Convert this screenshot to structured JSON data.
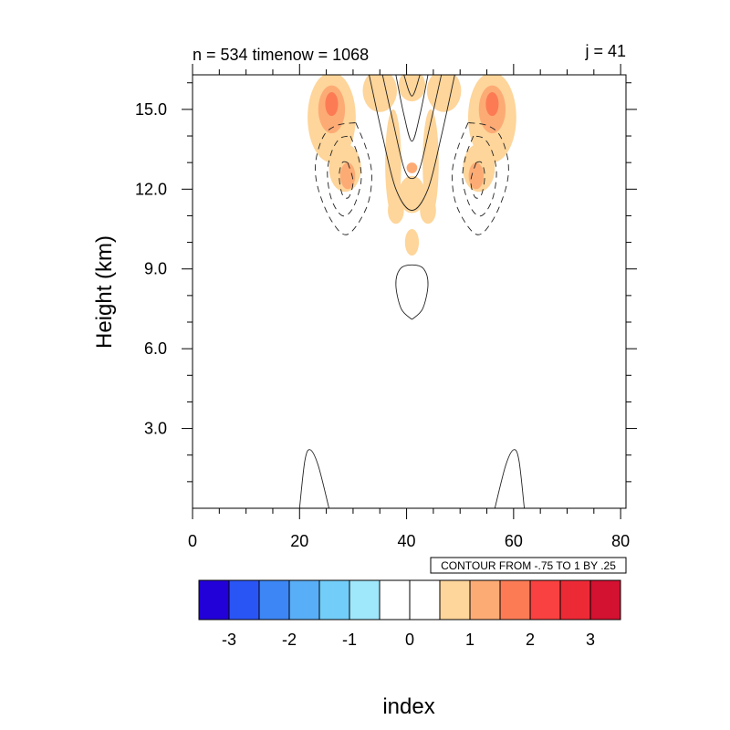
{
  "chart_data": {
    "type": "contour",
    "title_left": "n = 534 timenow = 1068",
    "title_right": "j = 41",
    "xlabel": "index",
    "ylabel": "Height (km)",
    "xlim": [
      0,
      81
    ],
    "ylim": [
      0,
      16.3
    ],
    "xticks": [
      {
        "value": 0,
        "label": "0"
      },
      {
        "value": 20,
        "label": "20"
      },
      {
        "value": 40,
        "label": "40"
      },
      {
        "value": 60,
        "label": "60"
      },
      {
        "value": 80,
        "label": "80"
      }
    ],
    "yticks": [
      {
        "value": 3,
        "label": "3.0"
      },
      {
        "value": 6,
        "label": "6.0"
      },
      {
        "value": 9,
        "label": "9.0"
      },
      {
        "value": 12,
        "label": "12.0"
      },
      {
        "value": 15,
        "label": "15.0"
      }
    ],
    "contour_info": "CONTOUR FROM -.75 TO 1 BY .25",
    "colorbar": {
      "colors": [
        "#2200d8",
        "#2a55f5",
        "#3c86f5",
        "#58aef7",
        "#72cdf8",
        "#9fe7fb",
        "#ffffff",
        "#ffffff",
        "#fed59a",
        "#fdab75",
        "#fc7b55",
        "#f84140",
        "#ec2a36",
        "#d31131"
      ],
      "labels": [
        "-3",
        "-2",
        "-1",
        "0",
        "1",
        "2",
        "3"
      ]
    },
    "filled_regions": [
      {
        "level": 1,
        "x": 26,
        "y": 14.7,
        "rx": 4.5,
        "ry": 1.7
      },
      {
        "level": 2,
        "x": 26,
        "y": 15.0,
        "rx": 2.5,
        "ry": 0.9
      },
      {
        "level": 3,
        "x": 26,
        "y": 15.2,
        "rx": 1.2,
        "ry": 0.45
      },
      {
        "level": 1,
        "x": 56,
        "y": 14.7,
        "rx": 4.5,
        "ry": 1.7
      },
      {
        "level": 2,
        "x": 56,
        "y": 15.0,
        "rx": 2.5,
        "ry": 0.9
      },
      {
        "level": 3,
        "x": 56,
        "y": 15.2,
        "rx": 1.2,
        "ry": 0.45
      },
      {
        "level": 1,
        "x": 35,
        "y": 15.7,
        "rx": 3.2,
        "ry": 0.8
      },
      {
        "level": 1,
        "x": 47,
        "y": 15.7,
        "rx": 3.2,
        "ry": 0.8
      },
      {
        "level": 1,
        "x": 41,
        "y": 15.9,
        "rx": 2.5,
        "ry": 0.6
      },
      {
        "level": 1,
        "x": 28.5,
        "y": 12.8,
        "rx": 3.0,
        "ry": 0.9
      },
      {
        "level": 2,
        "x": 29,
        "y": 12.5,
        "rx": 1.4,
        "ry": 0.5
      },
      {
        "level": 1,
        "x": 53.5,
        "y": 12.8,
        "rx": 3.0,
        "ry": 0.9
      },
      {
        "level": 2,
        "x": 53,
        "y": 12.5,
        "rx": 1.4,
        "ry": 0.5
      },
      {
        "level": 1,
        "x": 37.5,
        "y": 13.0,
        "rx": 1.5,
        "ry": 2.0
      },
      {
        "level": 1,
        "x": 44.5,
        "y": 13.0,
        "rx": 1.5,
        "ry": 2.0
      },
      {
        "level": 1,
        "x": 41,
        "y": 11.8,
        "rx": 2.5,
        "ry": 0.7
      },
      {
        "level": 1,
        "x": 38,
        "y": 11.2,
        "rx": 1.5,
        "ry": 0.5
      },
      {
        "level": 1,
        "x": 44,
        "y": 11.2,
        "rx": 1.5,
        "ry": 0.5
      },
      {
        "level": 1,
        "x": 41,
        "y": 10.0,
        "rx": 1.3,
        "ry": 0.5
      },
      {
        "level": 2,
        "x": 41,
        "y": 12.8,
        "rx": 1.0,
        "ry": 0.2
      }
    ],
    "contour_lines": [
      {
        "style": "solid",
        "points": [
          [
            20,
            0
          ],
          [
            21,
            1.8
          ],
          [
            22,
            2.2
          ],
          [
            23.5,
            1.6
          ],
          [
            25.5,
            0
          ]
        ]
      },
      {
        "style": "solid",
        "points": [
          [
            56.5,
            0
          ],
          [
            58.5,
            1.6
          ],
          [
            60,
            2.2
          ],
          [
            61,
            1.8
          ],
          [
            62,
            0
          ]
        ]
      },
      {
        "style": "solid",
        "points": [
          [
            41,
            7.1
          ],
          [
            43,
            7.5
          ],
          [
            44,
            8.4
          ],
          [
            43.2,
            9.0
          ],
          [
            41,
            9.15
          ],
          [
            38.8,
            9.0
          ],
          [
            38,
            8.4
          ],
          [
            39,
            7.5
          ],
          [
            41,
            7.1
          ]
        ]
      },
      {
        "style": "solid",
        "points": [
          [
            33,
            16.3
          ],
          [
            35.5,
            14.0
          ],
          [
            38,
            12.0
          ],
          [
            41,
            11.2
          ],
          [
            44,
            12.0
          ],
          [
            46.5,
            14.0
          ],
          [
            49,
            16.3
          ]
        ]
      },
      {
        "style": "solid",
        "points": [
          [
            35.5,
            16.3
          ],
          [
            37.5,
            14.5
          ],
          [
            39.5,
            12.8
          ],
          [
            41,
            12.4
          ],
          [
            42.5,
            12.8
          ],
          [
            44.5,
            14.5
          ],
          [
            46.5,
            16.3
          ]
        ]
      },
      {
        "style": "solid",
        "points": [
          [
            38,
            16.3
          ],
          [
            39.5,
            14.8
          ],
          [
            41,
            13.8
          ],
          [
            42.5,
            14.8
          ],
          [
            44,
            16.3
          ]
        ]
      },
      {
        "style": "solid",
        "points": [
          [
            39.5,
            16.3
          ],
          [
            41,
            15.5
          ],
          [
            42.5,
            16.3
          ]
        ]
      },
      {
        "style": "dashed",
        "points": [
          [
            30.5,
            14.5
          ],
          [
            32.5,
            13.5
          ],
          [
            33.5,
            12.5
          ],
          [
            32.5,
            11.3
          ],
          [
            29,
            10.3
          ],
          [
            26,
            10.8
          ],
          [
            23.5,
            12.0
          ],
          [
            23,
            13.0
          ],
          [
            24.5,
            14.0
          ],
          [
            27,
            14.4
          ],
          [
            30.5,
            14.5
          ]
        ]
      },
      {
        "style": "dashed",
        "points": [
          [
            29.5,
            14.0
          ],
          [
            31,
            13.2
          ],
          [
            31.5,
            12.3
          ],
          [
            30,
            11.3
          ],
          [
            28,
            11.0
          ],
          [
            26,
            11.6
          ],
          [
            25.2,
            12.6
          ],
          [
            26,
            13.4
          ],
          [
            27.5,
            13.9
          ],
          [
            29.5,
            14.0
          ]
        ]
      },
      {
        "style": "dashed",
        "points": [
          [
            29,
            13.0
          ],
          [
            30,
            12.3
          ],
          [
            29.2,
            11.7
          ],
          [
            28,
            11.8
          ],
          [
            27.4,
            12.5
          ],
          [
            28,
            13.0
          ],
          [
            29,
            13.0
          ]
        ]
      },
      {
        "style": "dashed",
        "points": [
          [
            51.5,
            14.5
          ],
          [
            49.5,
            13.5
          ],
          [
            48.5,
            12.5
          ],
          [
            49.5,
            11.3
          ],
          [
            53,
            10.3
          ],
          [
            56,
            10.8
          ],
          [
            58.5,
            12.0
          ],
          [
            59,
            13.0
          ],
          [
            57.5,
            14.0
          ],
          [
            55,
            14.4
          ],
          [
            51.5,
            14.5
          ]
        ]
      },
      {
        "style": "dashed",
        "points": [
          [
            52.5,
            14.0
          ],
          [
            51,
            13.2
          ],
          [
            50.5,
            12.3
          ],
          [
            52,
            11.3
          ],
          [
            54,
            11.0
          ],
          [
            56,
            11.6
          ],
          [
            56.8,
            12.6
          ],
          [
            56,
            13.4
          ],
          [
            54.5,
            13.9
          ],
          [
            52.5,
            14.0
          ]
        ]
      },
      {
        "style": "dashed",
        "points": [
          [
            53,
            13.0
          ],
          [
            52,
            12.3
          ],
          [
            52.8,
            11.7
          ],
          [
            54,
            11.8
          ],
          [
            54.6,
            12.5
          ],
          [
            54,
            13.0
          ],
          [
            53,
            13.0
          ]
        ]
      }
    ]
  }
}
